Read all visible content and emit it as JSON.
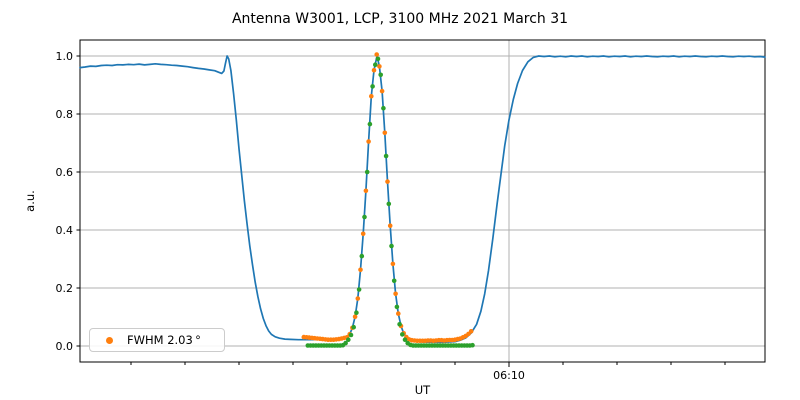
{
  "chart_data": {
    "type": "line+scatter",
    "title": "Antenna W3001, LCP, 3100 MHz 2021 March 31",
    "xlabel": "UT",
    "ylabel": "a.u.",
    "x_axis": {
      "unit": "minutes after 06:00 UT",
      "lim": [
        2.056,
        14.741
      ],
      "major_ticks": [
        {
          "value": 10,
          "label": "06:10"
        }
      ],
      "minor_ticks": [
        3,
        4,
        5,
        6,
        7,
        8,
        9,
        11,
        12,
        13,
        14
      ]
    },
    "y_axis": {
      "lim": [
        -0.055,
        1.055
      ],
      "ticks": [
        {
          "value": 0.0,
          "label": "0.0"
        },
        {
          "value": 0.2,
          "label": "0.2"
        },
        {
          "value": 0.4,
          "label": "0.4"
        },
        {
          "value": 0.6,
          "label": "0.6"
        },
        {
          "value": 0.8,
          "label": "0.8"
        },
        {
          "value": 1.0,
          "label": "1.0"
        }
      ]
    },
    "grid": {
      "color": "#b0b0b0",
      "y_gridlines": [
        0.0,
        0.2,
        0.4,
        0.6,
        0.8,
        1.0
      ],
      "x_gridlines": [
        10
      ]
    },
    "legend": {
      "label": "FWHM 2.03 °",
      "marker_color": "#ff7f0e",
      "position": "lower left"
    },
    "series": [
      {
        "name": "drift-scan-line",
        "type": "line",
        "color": "#1f77b4",
        "points": [
          [
            2.056,
            0.96
          ],
          [
            2.15,
            0.962
          ],
          [
            2.25,
            0.965
          ],
          [
            2.35,
            0.964
          ],
          [
            2.45,
            0.967
          ],
          [
            2.55,
            0.968
          ],
          [
            2.65,
            0.967
          ],
          [
            2.75,
            0.97
          ],
          [
            2.85,
            0.969
          ],
          [
            2.95,
            0.971
          ],
          [
            3.05,
            0.97
          ],
          [
            3.15,
            0.972
          ],
          [
            3.25,
            0.969
          ],
          [
            3.35,
            0.971
          ],
          [
            3.45,
            0.973
          ],
          [
            3.55,
            0.971
          ],
          [
            3.65,
            0.97
          ],
          [
            3.75,
            0.968
          ],
          [
            3.85,
            0.967
          ],
          [
            3.95,
            0.965
          ],
          [
            4.05,
            0.963
          ],
          [
            4.15,
            0.96
          ],
          [
            4.25,
            0.957
          ],
          [
            4.35,
            0.955
          ],
          [
            4.45,
            0.952
          ],
          [
            4.55,
            0.949
          ],
          [
            4.62,
            0.944
          ],
          [
            4.68,
            0.94
          ],
          [
            4.72,
            0.948
          ],
          [
            4.75,
            0.975
          ],
          [
            4.78,
            1.0
          ],
          [
            4.81,
            0.99
          ],
          [
            4.85,
            0.95
          ],
          [
            4.9,
            0.87
          ],
          [
            4.95,
            0.78
          ],
          [
            5.0,
            0.68
          ],
          [
            5.05,
            0.59
          ],
          [
            5.1,
            0.5
          ],
          [
            5.15,
            0.42
          ],
          [
            5.2,
            0.345
          ],
          [
            5.25,
            0.28
          ],
          [
            5.3,
            0.22
          ],
          [
            5.35,
            0.17
          ],
          [
            5.4,
            0.128
          ],
          [
            5.45,
            0.095
          ],
          [
            5.5,
            0.07
          ],
          [
            5.55,
            0.052
          ],
          [
            5.6,
            0.04
          ],
          [
            5.67,
            0.032
          ],
          [
            5.75,
            0.027
          ],
          [
            5.85,
            0.024
          ],
          [
            5.95,
            0.023
          ],
          [
            6.1,
            0.022
          ],
          [
            6.3,
            0.022
          ],
          [
            6.5,
            0.022
          ],
          [
            6.7,
            0.023
          ],
          [
            6.85,
            0.025
          ],
          [
            6.95,
            0.028
          ],
          [
            7.0,
            0.03
          ],
          [
            7.05,
            0.041
          ],
          [
            7.1,
            0.063
          ],
          [
            7.15,
            0.101
          ],
          [
            7.2,
            0.164
          ],
          [
            7.25,
            0.263
          ],
          [
            7.3,
            0.387
          ],
          [
            7.35,
            0.535
          ],
          [
            7.4,
            0.705
          ],
          [
            7.45,
            0.861
          ],
          [
            7.5,
            0.951
          ],
          [
            7.555,
            1.0
          ],
          [
            7.6,
            0.964
          ],
          [
            7.65,
            0.879
          ],
          [
            7.7,
            0.735
          ],
          [
            7.75,
            0.567
          ],
          [
            7.8,
            0.415
          ],
          [
            7.85,
            0.283
          ],
          [
            7.9,
            0.18
          ],
          [
            7.95,
            0.112
          ],
          [
            8.0,
            0.069
          ],
          [
            8.05,
            0.044
          ],
          [
            8.1,
            0.031
          ],
          [
            8.17,
            0.022
          ],
          [
            8.25,
            0.017
          ],
          [
            8.4,
            0.014
          ],
          [
            8.6,
            0.013
          ],
          [
            8.8,
            0.013
          ],
          [
            9.0,
            0.015
          ],
          [
            9.1,
            0.02
          ],
          [
            9.2,
            0.028
          ],
          [
            9.3,
            0.045
          ],
          [
            9.4,
            0.075
          ],
          [
            9.48,
            0.12
          ],
          [
            9.55,
            0.18
          ],
          [
            9.62,
            0.26
          ],
          [
            9.7,
            0.37
          ],
          [
            9.78,
            0.49
          ],
          [
            9.85,
            0.59
          ],
          [
            9.92,
            0.69
          ],
          [
            10.0,
            0.78
          ],
          [
            10.08,
            0.85
          ],
          [
            10.16,
            0.905
          ],
          [
            10.25,
            0.95
          ],
          [
            10.35,
            0.98
          ],
          [
            10.45,
            0.995
          ],
          [
            10.55,
            1.0
          ],
          [
            10.65,
            0.998
          ],
          [
            10.75,
            1.0
          ],
          [
            10.85,
            0.997
          ],
          [
            10.95,
            0.999
          ],
          [
            11.05,
            0.997
          ],
          [
            11.15,
            1.0
          ],
          [
            11.25,
            0.998
          ],
          [
            11.35,
            1.0
          ],
          [
            11.45,
            0.997
          ],
          [
            11.55,
            0.999
          ],
          [
            11.65,
            0.998
          ],
          [
            11.75,
            1.0
          ],
          [
            11.85,
            0.997
          ],
          [
            11.95,
            0.999
          ],
          [
            12.05,
            0.998
          ],
          [
            12.15,
            1.0
          ],
          [
            12.25,
            0.997
          ],
          [
            12.35,
            0.999
          ],
          [
            12.45,
            0.998
          ],
          [
            12.55,
            1.0
          ],
          [
            12.65,
            0.998
          ],
          [
            12.75,
            0.997
          ],
          [
            12.85,
            0.999
          ],
          [
            12.95,
            0.998
          ],
          [
            13.05,
            1.0
          ],
          [
            13.15,
            0.997
          ],
          [
            13.25,
            0.999
          ],
          [
            13.35,
            0.998
          ],
          [
            13.45,
            1.0
          ],
          [
            13.55,
            0.998
          ],
          [
            13.65,
            0.997
          ],
          [
            13.75,
            0.999
          ],
          [
            13.85,
            0.998
          ],
          [
            13.95,
            1.0
          ],
          [
            14.05,
            0.998
          ],
          [
            14.15,
            0.997
          ],
          [
            14.25,
            0.999
          ],
          [
            14.35,
            0.998
          ],
          [
            14.45,
            0.999
          ],
          [
            14.55,
            0.997
          ],
          [
            14.65,
            0.998
          ],
          [
            14.741,
            0.996
          ]
        ]
      },
      {
        "name": "normalized-data-points",
        "type": "scatter",
        "color": "#ff7f0e",
        "points": [
          [
            6.2,
            0.031
          ],
          [
            6.25,
            0.03
          ],
          [
            6.3,
            0.029
          ],
          [
            6.35,
            0.028
          ],
          [
            6.4,
            0.027
          ],
          [
            6.45,
            0.026
          ],
          [
            6.5,
            0.025
          ],
          [
            6.55,
            0.024
          ],
          [
            6.6,
            0.023
          ],
          [
            6.65,
            0.022
          ],
          [
            6.7,
            0.022
          ],
          [
            6.75,
            0.022
          ],
          [
            6.8,
            0.023
          ],
          [
            6.85,
            0.024
          ],
          [
            6.9,
            0.026
          ],
          [
            6.95,
            0.028
          ],
          [
            7.0,
            0.03
          ],
          [
            7.05,
            0.041
          ],
          [
            7.1,
            0.063
          ],
          [
            7.15,
            0.101
          ],
          [
            7.2,
            0.164
          ],
          [
            7.25,
            0.263
          ],
          [
            7.3,
            0.387
          ],
          [
            7.35,
            0.535
          ],
          [
            7.4,
            0.705
          ],
          [
            7.45,
            0.861
          ],
          [
            7.5,
            0.951
          ],
          [
            7.55,
            1.005
          ],
          [
            7.6,
            0.964
          ],
          [
            7.65,
            0.879
          ],
          [
            7.7,
            0.735
          ],
          [
            7.75,
            0.567
          ],
          [
            7.8,
            0.415
          ],
          [
            7.85,
            0.283
          ],
          [
            7.9,
            0.18
          ],
          [
            7.95,
            0.112
          ],
          [
            8.0,
            0.069
          ],
          [
            8.05,
            0.044
          ],
          [
            8.1,
            0.031
          ],
          [
            8.15,
            0.023
          ],
          [
            8.2,
            0.02
          ],
          [
            8.25,
            0.019
          ],
          [
            8.3,
            0.018
          ],
          [
            8.35,
            0.018
          ],
          [
            8.4,
            0.018
          ],
          [
            8.45,
            0.018
          ],
          [
            8.5,
            0.019
          ],
          [
            8.55,
            0.019
          ],
          [
            8.6,
            0.018
          ],
          [
            8.65,
            0.019
          ],
          [
            8.7,
            0.02
          ],
          [
            8.75,
            0.02
          ],
          [
            8.8,
            0.019
          ],
          [
            8.85,
            0.02
          ],
          [
            8.9,
            0.021
          ],
          [
            8.95,
            0.021
          ],
          [
            9.0,
            0.022
          ],
          [
            9.05,
            0.024
          ],
          [
            9.1,
            0.026
          ],
          [
            9.15,
            0.03
          ],
          [
            9.2,
            0.035
          ],
          [
            9.25,
            0.042
          ],
          [
            9.3,
            0.051
          ]
        ]
      },
      {
        "name": "gaussian-fit-points",
        "type": "scatter",
        "color": "#2ca02c",
        "points": [
          [
            6.275,
            0.002
          ],
          [
            6.325,
            0.002
          ],
          [
            6.375,
            0.002
          ],
          [
            6.425,
            0.002
          ],
          [
            6.475,
            0.002
          ],
          [
            6.525,
            0.002
          ],
          [
            6.575,
            0.002
          ],
          [
            6.625,
            0.002
          ],
          [
            6.675,
            0.002
          ],
          [
            6.725,
            0.002
          ],
          [
            6.775,
            0.002
          ],
          [
            6.825,
            0.002
          ],
          [
            6.875,
            0.002
          ],
          [
            6.925,
            0.003
          ],
          [
            6.975,
            0.01
          ],
          [
            7.025,
            0.022
          ],
          [
            7.075,
            0.038
          ],
          [
            7.125,
            0.065
          ],
          [
            7.175,
            0.115
          ],
          [
            7.225,
            0.195
          ],
          [
            7.275,
            0.31
          ],
          [
            7.325,
            0.445
          ],
          [
            7.375,
            0.6
          ],
          [
            7.425,
            0.765
          ],
          [
            7.475,
            0.895
          ],
          [
            7.525,
            0.97
          ],
          [
            7.575,
            0.99
          ],
          [
            7.625,
            0.935
          ],
          [
            7.675,
            0.82
          ],
          [
            7.725,
            0.655
          ],
          [
            7.775,
            0.49
          ],
          [
            7.825,
            0.345
          ],
          [
            7.875,
            0.225
          ],
          [
            7.925,
            0.135
          ],
          [
            7.975,
            0.075
          ],
          [
            8.025,
            0.04
          ],
          [
            8.075,
            0.022
          ],
          [
            8.125,
            0.01
          ],
          [
            8.175,
            0.004
          ],
          [
            8.225,
            0.002
          ],
          [
            8.275,
            0.002
          ],
          [
            8.325,
            0.002
          ],
          [
            8.375,
            0.002
          ],
          [
            8.425,
            0.002
          ],
          [
            8.475,
            0.002
          ],
          [
            8.525,
            0.002
          ],
          [
            8.575,
            0.002
          ],
          [
            8.625,
            0.002
          ],
          [
            8.675,
            0.002
          ],
          [
            8.725,
            0.002
          ],
          [
            8.775,
            0.002
          ],
          [
            8.825,
            0.002
          ],
          [
            8.875,
            0.002
          ],
          [
            8.925,
            0.002
          ],
          [
            8.975,
            0.002
          ],
          [
            9.025,
            0.002
          ],
          [
            9.075,
            0.002
          ],
          [
            9.125,
            0.002
          ],
          [
            9.175,
            0.002
          ],
          [
            9.225,
            0.002
          ],
          [
            9.275,
            0.002
          ],
          [
            9.325,
            0.003
          ]
        ]
      }
    ]
  }
}
